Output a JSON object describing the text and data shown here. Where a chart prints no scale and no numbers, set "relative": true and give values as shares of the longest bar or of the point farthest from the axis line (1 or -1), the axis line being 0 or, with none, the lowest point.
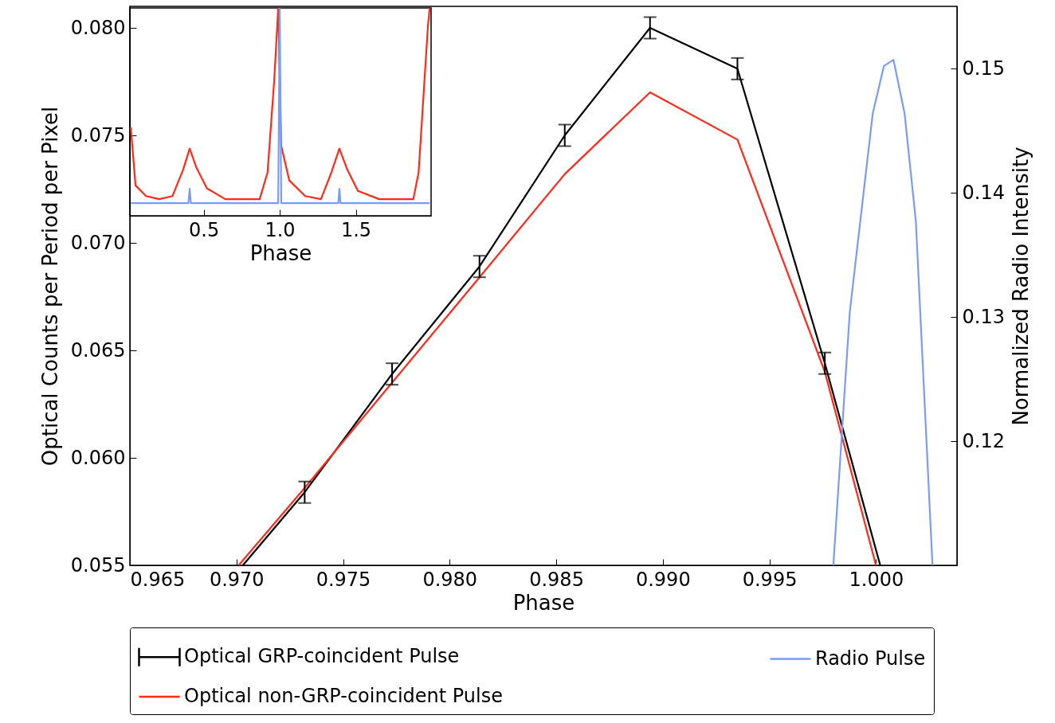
{
  "chart_data": [
    {
      "type": "line",
      "xlabel": "Phase",
      "ylabel": "Optical Counts per Period per Pixel",
      "y2label": "Normalized Radio Intensity",
      "xlim": [
        0.965,
        1.0038
      ],
      "xticks": [
        0.965,
        {
          "value": 0.97,
          "label": "0.970"
        },
        0.975,
        {
          "value": 0.98,
          "label": "0.980"
        },
        0.985,
        {
          "value": 0.99,
          "label": "0.990"
        },
        0.995,
        {
          "value": 1,
          "label": "1.000"
        }
      ],
      "ylim": [
        0.055,
        0.081
      ],
      "yticks": [
        0.055,
        {
          "value": 0.06,
          "label": "0.060"
        },
        0.065,
        {
          "value": 0.07,
          "label": "0.070"
        },
        0.075,
        {
          "value": 0.08,
          "label": "0.080"
        }
      ],
      "y2lim": [
        0.11,
        0.155
      ],
      "y2ticks": [
        0.12,
        0.13,
        0.14,
        0.15
      ],
      "legend": "bottom",
      "series": [
        {
          "name": "Optical GRP-coincident Pulse",
          "color": "#000000",
          "x": [
            0.9703,
            0.9732,
            0.9773,
            0.9814,
            0.9854,
            0.9894,
            0.9935,
            0.9976,
            1.0002
          ],
          "values": [
            0.055,
            0.0584,
            0.0639,
            0.0689,
            0.075,
            0.08,
            0.0781,
            0.0644,
            0.055
          ],
          "errors": [
            null,
            0.0005,
            0.0005,
            0.0005,
            0.0005,
            0.0005,
            0.0005,
            0.0005,
            null
          ]
        },
        {
          "name": "Radio Pulse",
          "color": "#7b9cf0",
          "axis": "y2",
          "x": [
            0.998,
            0.99877,
            0.99985,
            1.00037,
            1.00082,
            1.00134,
            1.00187,
            1.00265
          ],
          "values": [
            0.11,
            0.1304,
            0.1464,
            0.1502,
            0.1507,
            0.1464,
            0.1377,
            0.11
          ]
        },
        {
          "name": "Optical non-GRP-coincident Pulse",
          "color": "#ff2a1a",
          "x": [
            0.9701,
            0.9732,
            0.9773,
            0.9814,
            0.9854,
            0.9894,
            0.9935,
            0.9976,
            1.0
          ],
          "values": [
            0.055,
            0.0586,
            0.0635,
            0.0684,
            0.0732,
            0.077,
            0.0748,
            0.064,
            0.055
          ]
        }
      ]
    },
    {
      "type": "line",
      "relative": true,
      "xlabel": "Phase",
      "xlim": [
        0.015,
        1.995
      ],
      "xticks": [
        0.5,
        {
          "value": 1,
          "label": "1.0"
        },
        1.5
      ],
      "tick_labels": "x",
      "series": [
        {
          "color": "#ff2a1a",
          "x": [
            0.021,
            0.052,
            0.121,
            0.208,
            0.295,
            0.365,
            0.408,
            0.451,
            0.521,
            0.642,
            0.868,
            0.92,
            0.964,
            0.99,
            1.01,
            1.063,
            1.167,
            1.271,
            1.34,
            1.392,
            1.444,
            1.514,
            1.653,
            1.878,
            1.913,
            1.974,
            1.986
          ],
          "values": [
            0.425,
            0.146,
            0.095,
            0.08,
            0.095,
            0.222,
            0.323,
            0.234,
            0.132,
            0.08,
            0.08,
            0.209,
            0.655,
            1,
            0.336,
            0.17,
            0.095,
            0.08,
            0.209,
            0.323,
            0.222,
            0.12,
            0.08,
            0.08,
            0.209,
            0.911,
            1
          ]
        },
        {
          "color": "#7b9cf0",
          "x": [
            0.021,
            0.4,
            0.408,
            0.416,
            0.99,
            1.0,
            1.01,
            1.385,
            1.392,
            1.4,
            1.986
          ],
          "values": [
            0.061,
            0.061,
            0.13,
            0.061,
            0.061,
            1,
            0.061,
            0.061,
            0.13,
            0.061,
            0.061
          ]
        }
      ]
    }
  ]
}
